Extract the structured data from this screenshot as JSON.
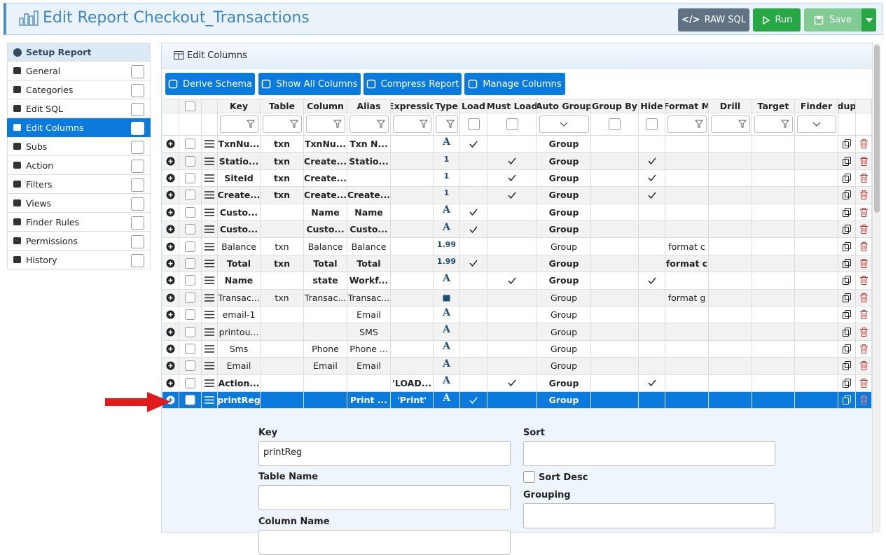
{
  "header": {
    "title": "Edit Report Checkout_Transactions",
    "buttons": [
      "RAW SQL",
      "Run",
      "Save"
    ]
  },
  "sidebar": {
    "items": [
      "Setup Report",
      "General",
      "Categories",
      "Edit SQL",
      "Edit Columns",
      "Subs",
      "Action",
      "Filters",
      "Views",
      "Finder Rules",
      "Permissions",
      "History"
    ],
    "active": 4
  },
  "panel": {
    "title": "Edit Columns",
    "toolbar": [
      "Derive Schema",
      "Show All Columns",
      "Compress Report",
      "Manage Columns"
    ]
  },
  "table": {
    "columns": [
      "Key",
      "Table",
      "Column",
      "Alias",
      "Expressio",
      "Type",
      "Load",
      "Must Load",
      "Auto Group",
      "Group By",
      "Hide",
      "Format M",
      "Drill",
      "Target",
      "Finder",
      "dup"
    ],
    "rows": [
      {
        "key": "TxnNu...",
        "table": "txn",
        "column": "TxnNu...",
        "alias": "Txn N...",
        "expression": null,
        "type": "A",
        "load": true,
        "must_load": false,
        "auto_group": "Group",
        "hide": false,
        "format": null,
        "bold": true
      },
      {
        "key": "Statio...",
        "table": "txn",
        "column": "Create...",
        "alias": "Statio...",
        "expression": null,
        "type": "1",
        "load": false,
        "must_load": true,
        "auto_group": "Group",
        "hide": true,
        "format": null,
        "bold": true
      },
      {
        "key": "SiteId",
        "table": "txn",
        "column": "Create...",
        "alias": null,
        "expression": null,
        "type": "1",
        "load": false,
        "must_load": true,
        "auto_group": "Group",
        "hide": true,
        "format": null,
        "bold": true
      },
      {
        "key": "Create...",
        "table": "txn",
        "column": "Create...",
        "alias": "Create...",
        "expression": null,
        "type": "1",
        "load": false,
        "must_load": true,
        "auto_group": "Group",
        "hide": true,
        "format": null,
        "bold": true
      },
      {
        "key": "Custo...",
        "table": null,
        "column": "Name",
        "alias": "Name",
        "expression": null,
        "type": "A",
        "load": true,
        "must_load": false,
        "auto_group": "Group",
        "hide": false,
        "format": null,
        "bold": true
      },
      {
        "key": "Custo...",
        "table": null,
        "column": "Custo...",
        "alias": "Custo...",
        "expression": null,
        "type": "A",
        "load": true,
        "must_load": false,
        "auto_group": "Group",
        "hide": false,
        "format": null,
        "bold": true
      },
      {
        "key": "Balance",
        "table": "txn",
        "column": "Balance",
        "alias": "Balance",
        "expression": null,
        "type": "1.99",
        "load": false,
        "must_load": false,
        "auto_group": "Group",
        "hide": false,
        "format": "format c",
        "bold": false
      },
      {
        "key": "Total",
        "table": "txn",
        "column": "Total",
        "alias": "Total",
        "expression": null,
        "type": "1.99",
        "load": true,
        "must_load": false,
        "auto_group": "Group",
        "hide": false,
        "format": "format c",
        "bold": true
      },
      {
        "key": "Name",
        "table": null,
        "column": "state",
        "alias": "Workf...",
        "expression": null,
        "type": "A",
        "load": false,
        "must_load": true,
        "auto_group": "Group",
        "hide": true,
        "format": null,
        "bold": true
      },
      {
        "key": "Transac...",
        "table": "txn",
        "column": "Transac...",
        "alias": "Transac...",
        "expression": null,
        "type": null,
        "load": false,
        "must_load": false,
        "auto_group": "Group",
        "hide": false,
        "format": "format g",
        "bold": false
      },
      {
        "key": "email-1",
        "table": null,
        "column": null,
        "alias": "Email",
        "expression": null,
        "type": "A",
        "load": false,
        "must_load": false,
        "auto_group": "Group",
        "hide": false,
        "format": null,
        "bold": false
      },
      {
        "key": "printou...",
        "table": null,
        "column": null,
        "alias": "SMS",
        "expression": null,
        "type": "A",
        "load": false,
        "must_load": false,
        "auto_group": "Group",
        "hide": false,
        "format": null,
        "bold": false
      },
      {
        "key": "Sms",
        "table": null,
        "column": "Phone",
        "alias": "Phone ...",
        "expression": null,
        "type": "A",
        "load": false,
        "must_load": false,
        "auto_group": "Group",
        "hide": false,
        "format": null,
        "bold": false
      },
      {
        "key": "Email",
        "table": null,
        "column": "Email",
        "alias": "Email",
        "expression": null,
        "type": "A",
        "load": false,
        "must_load": false,
        "auto_group": "Group",
        "hide": false,
        "format": null,
        "bold": false
      },
      {
        "key": "Action...",
        "table": null,
        "column": null,
        "alias": null,
        "expression": "'LOAD...",
        "type": "A",
        "load": false,
        "must_load": true,
        "auto_group": "Group",
        "hide": true,
        "format": null,
        "bold": true
      },
      {
        "key": "printReg",
        "table": null,
        "column": null,
        "alias": "Print ...",
        "expression": "'Print'",
        "type": "A",
        "load": true,
        "must_load": false,
        "auto_group": "Group",
        "hide": false,
        "format": null,
        "bold": true
      }
    ],
    "selected": 15
  },
  "form": {
    "key_label": "Key",
    "key_value": "printReg",
    "sort_label": "Sort",
    "table_name_label": "Table Name",
    "sort_desc_label": "Sort Desc",
    "grouping_label": "Grouping",
    "column_name_label": "Column Name"
  }
}
